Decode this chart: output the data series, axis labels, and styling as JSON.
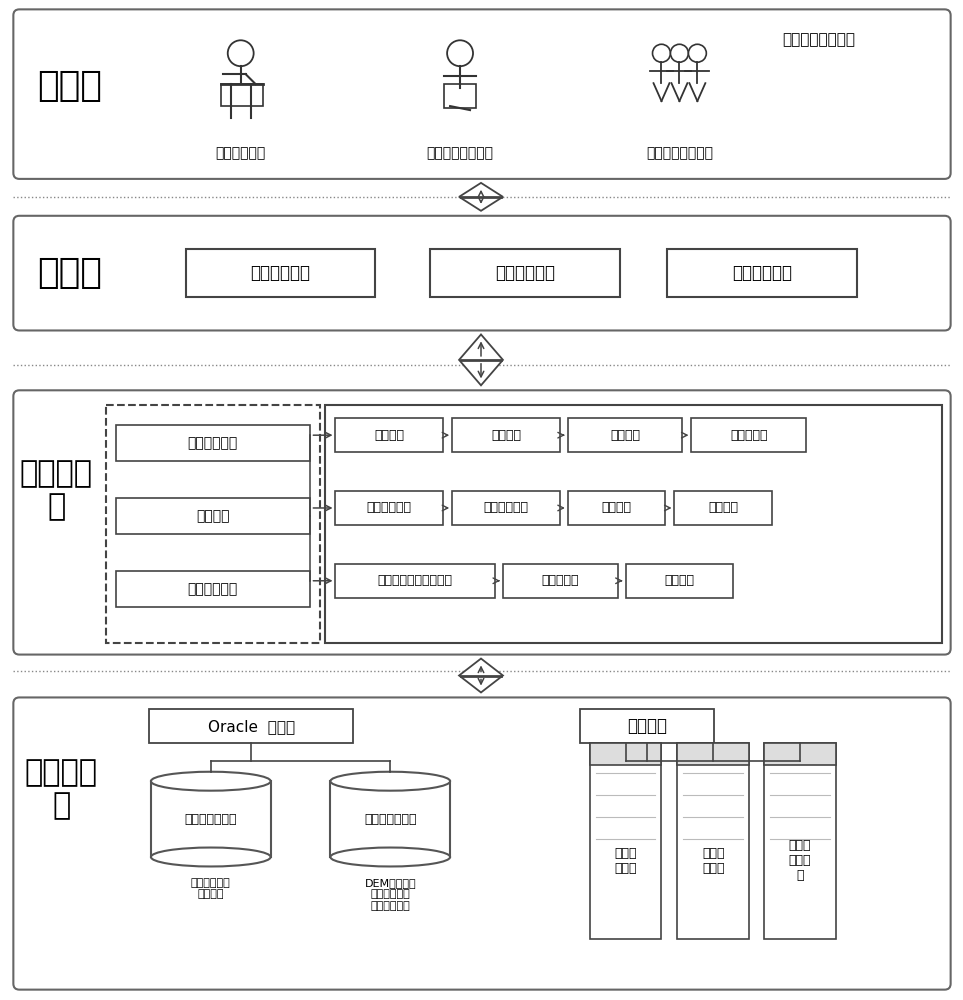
{
  "bg_color": "#ffffff",
  "border_color": "#444444",
  "layer1_label": "应用层",
  "layer2_label": "表现层",
  "layer3_label": "功能逻辑\n层",
  "layer4_label": "数据服务\n层",
  "layer1_sublabel": "辅助线路设计平台",
  "layer1_icons": [
    "领导分析决策",
    "数据库管理员维护",
    "一般用户日常业务"
  ],
  "layer2_boxes": [
    "三维场景视图",
    "辅助设计视图",
    "成果展示视图"
  ],
  "layer3_left_boxes": [
    "三维基本功能",
    "基本组件",
    "辅助设计功能"
  ],
  "layer3_row1": [
    "距离量算",
    "面积量算",
    "淹没分析",
    "填挖方分析"
  ],
  "layer3_row2": [
    "辅助路径设计",
    "路径断面提取",
    "信息统计",
    "影像导出"
  ],
  "layer3_row3": [
    "输电线路设计成果三维",
    "协议区标示",
    "站址规选"
  ],
  "layer4_db1_label": "Oracle  数据库",
  "layer4_db2_label": "本地文件",
  "layer4_db1_sub": "三维模型数据库",
  "layer4_db2_sub": "地形影像数据库",
  "layer4_db1_desc": "变电站、线路\n模型数据",
  "layer4_db2_desc": "DEM、卫星影\n像、航空影像\n专题空间图层",
  "layer4_files": [
    "排位接\n口文件",
    "线路方\n案文件",
    "变电站\n方案文\n件"
  ]
}
